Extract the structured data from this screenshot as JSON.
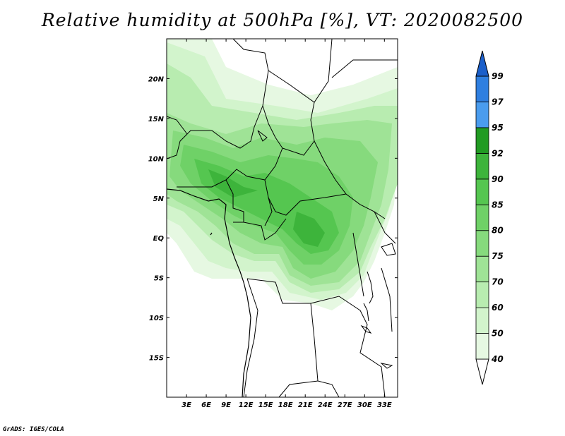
{
  "title": "Relative humidity at 500hPa [%], VT: 2020082500",
  "footer": "GrADS: IGES/COLA",
  "map": {
    "lon_range": [
      0,
      35
    ],
    "lat_range": [
      -20,
      25
    ],
    "lon_ticks": [
      "3E",
      "6E",
      "9E",
      "12E",
      "15E",
      "18E",
      "21E",
      "24E",
      "27E",
      "30E",
      "33E"
    ],
    "lat_ticks": [
      "20N",
      "15N",
      "10N",
      "5N",
      "EQ",
      "5S",
      "10S",
      "15S"
    ]
  },
  "colorbar": {
    "levels": [
      "40",
      "50",
      "60",
      "70",
      "75",
      "80",
      "85",
      "90",
      "92",
      "95",
      "97",
      "99"
    ],
    "colors": [
      "#ffffff",
      "#e6f8e2",
      "#d2f4cc",
      "#b8ecb0",
      "#9fe396",
      "#86da7d",
      "#6fd167",
      "#55c650",
      "#3db43b",
      "#219b23",
      "#4a9cee",
      "#2f7fe0",
      "#1b5fca"
    ]
  }
}
